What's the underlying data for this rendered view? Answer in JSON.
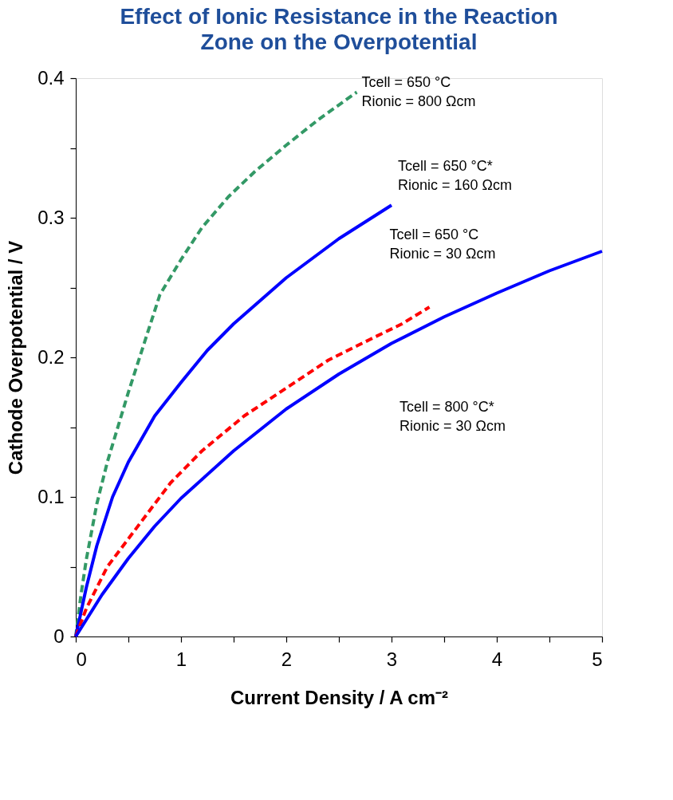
{
  "chart_data": {
    "type": "line",
    "title": "Effect of Ionic Resistance in the Reaction Zone on the Overpotential",
    "xlabel": "Current Density / A cm⁻²",
    "ylabel": "Cathode Overpotential / V",
    "xlim": [
      0,
      5
    ],
    "ylim": [
      0,
      0.4
    ],
    "xticks": [
      0,
      {
        "value": 0.5,
        "label": null
      },
      1,
      {
        "value": 1.5,
        "label": null
      },
      2,
      {
        "value": 2.5,
        "label": null
      },
      3,
      {
        "value": 3.5,
        "label": null
      },
      4,
      {
        "value": 4.5,
        "label": null
      },
      5
    ],
    "yticks": [
      0,
      {
        "value": 0.05,
        "label": null
      },
      0.1,
      {
        "value": 0.15,
        "label": null
      },
      0.2,
      {
        "value": 0.25,
        "label": null
      },
      0.3,
      {
        "value": 0.35,
        "label": null
      },
      0.4
    ],
    "grid": false,
    "marker": "none",
    "series": [
      {
        "color": "#339966",
        "line_style": "dashed",
        "x": [
          0,
          0.05,
          0.1,
          0.2,
          0.3,
          0.4,
          0.5,
          0.65,
          0.8,
          1.0,
          1.2,
          1.45,
          1.7,
          2.0,
          2.3,
          2.67
        ],
        "values": [
          0,
          0.03,
          0.055,
          0.095,
          0.125,
          0.15,
          0.175,
          0.21,
          0.245,
          0.27,
          0.293,
          0.315,
          0.333,
          0.352,
          0.37,
          0.39
        ]
      },
      {
        "color": "#0000ff",
        "line_style": "solid",
        "x": [
          0,
          0.1,
          0.2,
          0.35,
          0.5,
          0.75,
          1.0,
          1.25,
          1.5,
          2.0,
          2.5,
          3.0
        ],
        "values": [
          0,
          0.035,
          0.065,
          0.1,
          0.125,
          0.158,
          0.182,
          0.205,
          0.224,
          0.257,
          0.285,
          0.309
        ]
      },
      {
        "color": "#ff0000",
        "line_style": "dashed",
        "x": [
          0,
          0.1,
          0.3,
          0.5,
          0.7,
          0.9,
          1.2,
          1.6,
          2.0,
          2.4,
          2.8,
          3.1,
          3.36
        ],
        "values": [
          0,
          0.02,
          0.05,
          0.07,
          0.09,
          0.11,
          0.133,
          0.158,
          0.178,
          0.198,
          0.213,
          0.224,
          0.236
        ]
      },
      {
        "color": "#0000ff",
        "line_style": "solid",
        "x": [
          0,
          0.25,
          0.5,
          0.75,
          1.0,
          1.5,
          2.0,
          2.5,
          3.0,
          3.5,
          4.0,
          4.5,
          5.0
        ],
        "values": [
          0,
          0.03,
          0.056,
          0.079,
          0.099,
          0.133,
          0.163,
          0.188,
          0.21,
          0.229,
          0.246,
          0.262,
          0.276
        ]
      }
    ],
    "annotations": [
      "Tcell = 650 °C",
      "Rionic = 800 Ωcm",
      "Tcell = 650 °C*",
      "Rionic = 160 Ωcm",
      "Tcell = 650 °C",
      "Rionic = 30 Ωcm",
      "Tcell = 800 °C*",
      "Rionic = 30 Ωcm"
    ]
  }
}
